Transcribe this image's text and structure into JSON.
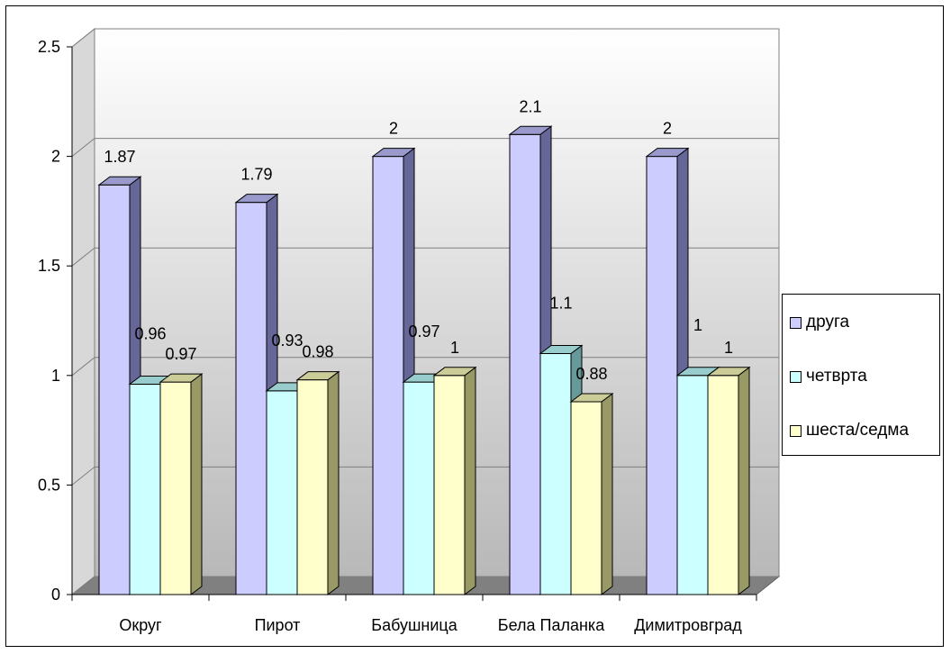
{
  "chart_data": {
    "type": "bar",
    "categories": [
      "Округ",
      "Пирот",
      "Бабушница",
      "Бела Паланка",
      "Димитровград"
    ],
    "series": [
      {
        "name": "друга",
        "values": [
          1.87,
          1.79,
          2,
          2.1,
          2
        ],
        "color": "#CCCCFF",
        "side": "#666699",
        "top": "#9999CC"
      },
      {
        "name": "четврта",
        "values": [
          0.96,
          0.93,
          0.97,
          1.1,
          1
        ],
        "color": "#CCFFFF",
        "side": "#669999",
        "top": "#99CCCC"
      },
      {
        "name": "шеста/седма",
        "values": [
          0.97,
          0.98,
          1,
          0.88,
          1
        ],
        "color": "#FFFFCC",
        "side": "#999966",
        "top": "#CCCC99"
      }
    ],
    "data_labels": [
      [
        "1.87",
        "1.79",
        "2",
        "2.1",
        "2"
      ],
      [
        "0.96",
        "0.93",
        "0.97",
        "1.1",
        "1"
      ],
      [
        "0.97",
        "0.98",
        "1",
        "0.88",
        "1"
      ]
    ],
    "y_ticks": [
      "0",
      "0.5",
      "1",
      "1.5",
      "2",
      "2.5"
    ],
    "ylim": [
      0,
      2.5
    ],
    "grid": true,
    "legend": "right",
    "style": "3d-clustered-column"
  }
}
